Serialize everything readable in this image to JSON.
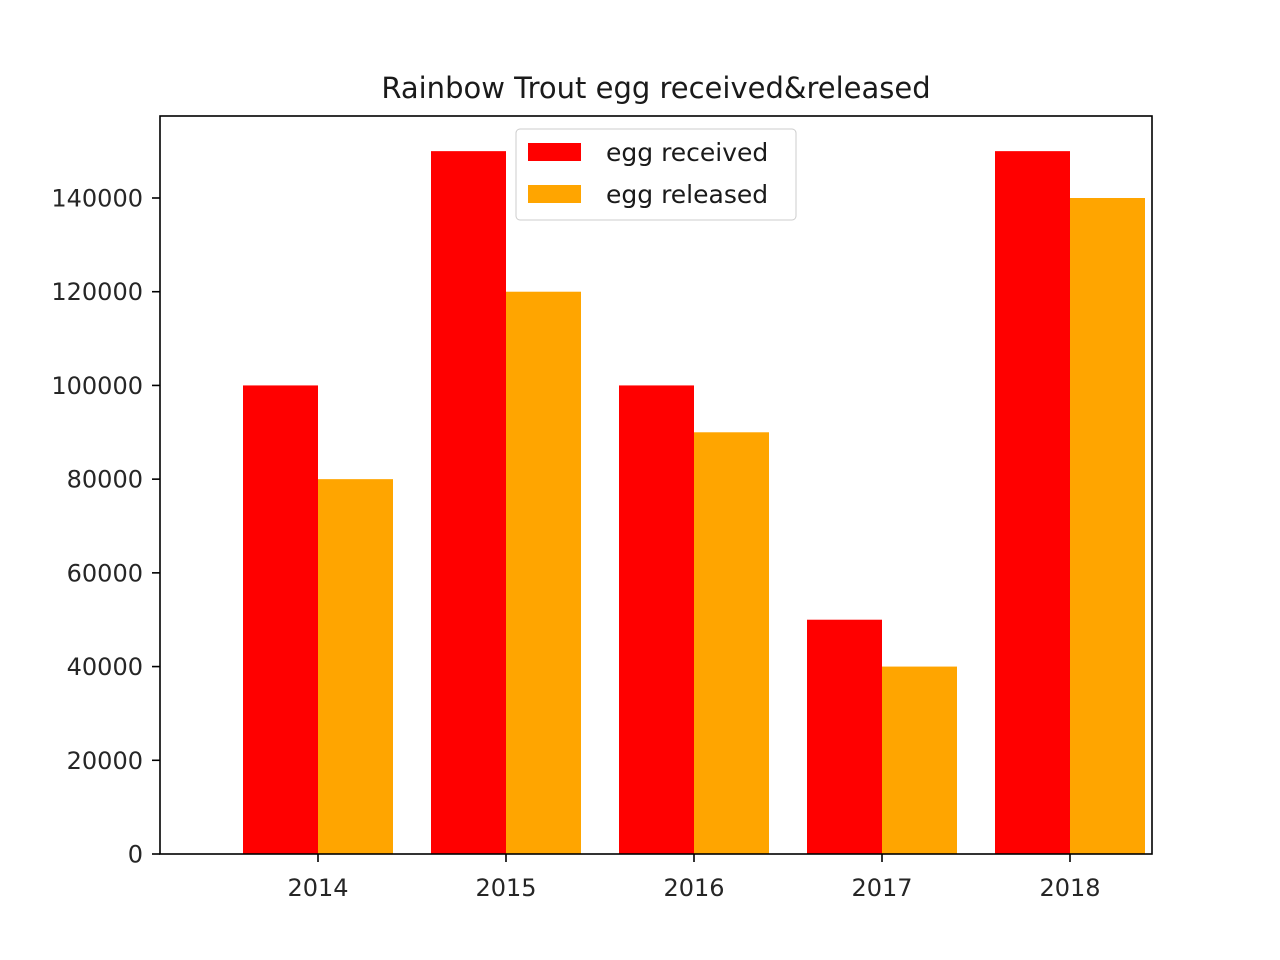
{
  "chart_data": {
    "type": "bar",
    "title": "Rainbow Trout egg received&released",
    "xlabel": "",
    "ylabel": "",
    "categories": [
      "2014",
      "2015",
      "2016",
      "2017",
      "2018"
    ],
    "series": [
      {
        "name": "egg received",
        "color": "#ff0000",
        "values": [
          100000,
          150000,
          100000,
          50000,
          150000
        ]
      },
      {
        "name": "egg released",
        "color": "#ffa500",
        "values": [
          80000,
          120000,
          90000,
          40000,
          140000
        ]
      }
    ],
    "ylim": [
      0,
      157500
    ],
    "yticks": [
      0,
      20000,
      40000,
      60000,
      80000,
      100000,
      120000,
      140000
    ],
    "ytick_labels": [
      "0",
      "20000",
      "40000",
      "60000",
      "80000",
      "100000",
      "120000",
      "140000"
    ],
    "grid": false,
    "legend": {
      "placement": "upper-center"
    }
  }
}
